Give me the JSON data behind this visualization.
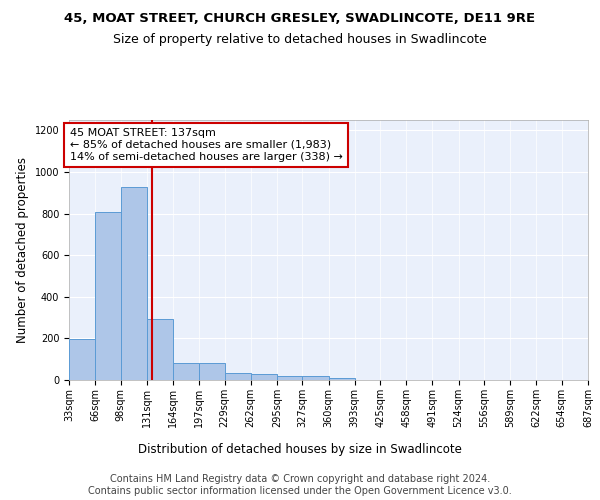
{
  "title1": "45, MOAT STREET, CHURCH GRESLEY, SWADLINCOTE, DE11 9RE",
  "title2": "Size of property relative to detached houses in Swadlincote",
  "xlabel": "Distribution of detached houses by size in Swadlincote",
  "ylabel": "Number of detached properties",
  "bin_edges": [
    33,
    66,
    98,
    131,
    164,
    197,
    229,
    262,
    295,
    327,
    360,
    393,
    425,
    458,
    491,
    524,
    556,
    589,
    622,
    654,
    687
  ],
  "bar_heights": [
    196,
    810,
    930,
    295,
    82,
    82,
    35,
    30,
    17,
    17,
    10,
    0,
    0,
    0,
    0,
    0,
    0,
    0,
    0,
    0
  ],
  "bar_color": "#aec6e8",
  "bar_edge_color": "#5b9bd5",
  "vline_x": 137,
  "vline_color": "#cc0000",
  "annotation_text": "45 MOAT STREET: 137sqm\n← 85% of detached houses are smaller (1,983)\n14% of semi-detached houses are larger (338) →",
  "annotation_box_color": "#ffffff",
  "annotation_box_edge": "#cc0000",
  "ylim": [
    0,
    1250
  ],
  "yticks": [
    0,
    200,
    400,
    600,
    800,
    1000,
    1200
  ],
  "tick_labels": [
    "33sqm",
    "66sqm",
    "98sqm",
    "131sqm",
    "164sqm",
    "197sqm",
    "229sqm",
    "262sqm",
    "295sqm",
    "327sqm",
    "360sqm",
    "393sqm",
    "425sqm",
    "458sqm",
    "491sqm",
    "524sqm",
    "556sqm",
    "589sqm",
    "622sqm",
    "654sqm",
    "687sqm"
  ],
  "bg_color": "#eaf0fb",
  "footer1": "Contains HM Land Registry data © Crown copyright and database right 2024.",
  "footer2": "Contains public sector information licensed under the Open Government Licence v3.0.",
  "title_fontsize": 9.5,
  "subtitle_fontsize": 9,
  "axis_label_fontsize": 8.5,
  "tick_fontsize": 7,
  "footer_fontsize": 7,
  "annotation_fontsize": 8
}
